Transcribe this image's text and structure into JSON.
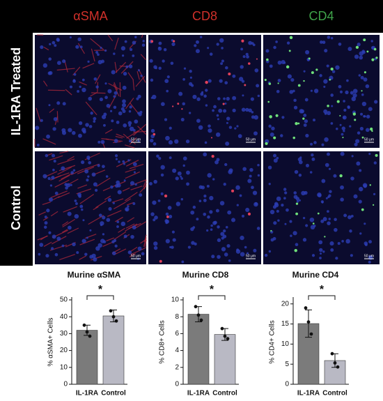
{
  "figure": {
    "columns": [
      {
        "label": "αSMA",
        "color": "#d0302a"
      },
      {
        "label": "CD8",
        "color": "#d0302a"
      },
      {
        "label": "CD4",
        "color": "#3fa34a"
      }
    ],
    "rows": [
      "IL-1RA Treated",
      "Control"
    ],
    "scale_bar_label": "50 μm"
  },
  "chart_data": [
    {
      "type": "bar",
      "title": "Murine αSMA",
      "ylabel": "% αSMA+ Cells",
      "categories": [
        "IL-1RA",
        "Control"
      ],
      "values": [
        32,
        40.5
      ],
      "errors": [
        3,
        3.5
      ],
      "points": [
        [
          35,
          31,
          28.5
        ],
        [
          43.5,
          40,
          37.5
        ]
      ],
      "colors": [
        "#7b7b7b",
        "#b9b9c4"
      ],
      "ylim": [
        0,
        50
      ],
      "yticks": [
        0,
        10,
        20,
        30,
        40,
        50
      ],
      "annotation": "*"
    },
    {
      "type": "bar",
      "title": "Murine CD8",
      "ylabel": "% CD8+ Cells",
      "categories": [
        "IL-1RA",
        "Control"
      ],
      "values": [
        8.3,
        5.9
      ],
      "errors": [
        0.9,
        0.7
      ],
      "points": [
        [
          9.2,
          8.2,
          7.6
        ],
        [
          6.6,
          5.7,
          5.4
        ]
      ],
      "colors": [
        "#7b7b7b",
        "#b9b9c4"
      ],
      "ylim": [
        0,
        10
      ],
      "yticks": [
        0,
        2,
        4,
        6,
        8,
        10
      ],
      "annotation": "*"
    },
    {
      "type": "bar",
      "title": "Murine CD4",
      "ylabel": "% CD4+ Cells",
      "categories": [
        "IL-1RA",
        "Control"
      ],
      "values": [
        15.1,
        5.9
      ],
      "errors": [
        3.4,
        1.7
      ],
      "points": [
        [
          19,
          15.5,
          12.5
        ],
        [
          7.6,
          5.3,
          4.3
        ]
      ],
      "colors": [
        "#7b7b7b",
        "#b9b9c4"
      ],
      "ylim": [
        0,
        21
      ],
      "yticks": [
        0,
        5,
        10,
        15,
        20
      ],
      "annotation": "*"
    }
  ]
}
